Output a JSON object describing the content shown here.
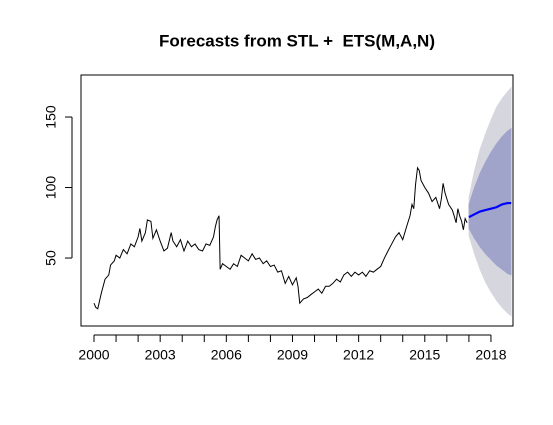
{
  "chart_data": {
    "type": "forecast-line",
    "title": "Forecasts from STL +  ETS(M,A,N)",
    "xlim": [
      1999.41,
      2019.0
    ],
    "ylim": [
      1.8,
      179.8
    ],
    "xticks": [
      2000,
      2003,
      2006,
      2009,
      2012,
      2015,
      2018
    ],
    "xminor_ticks": [
      2001,
      2002,
      2004,
      2005,
      2007,
      2008,
      2010,
      2011,
      2013,
      2014,
      2016,
      2017
    ],
    "yticks": [
      50,
      100,
      150
    ],
    "color": "#000000",
    "x": [
      2000.0,
      2000.08,
      2000.17,
      2000.33,
      2000.5,
      2000.67,
      2000.75,
      2000.92,
      2001.0,
      2001.17,
      2001.33,
      2001.5,
      2001.67,
      2001.83,
      2002.0,
      2002.08,
      2002.17,
      2002.33,
      2002.42,
      2002.58,
      2002.67,
      2002.83,
      2003.0,
      2003.17,
      2003.33,
      2003.5,
      2003.58,
      2003.75,
      2003.92,
      2004.08,
      2004.25,
      2004.42,
      2004.58,
      2004.75,
      2004.92,
      2005.08,
      2005.25,
      2005.42,
      2005.5,
      2005.58,
      2005.67,
      2005.72,
      2005.83,
      2006.0,
      2006.17,
      2006.33,
      2006.5,
      2006.67,
      2006.83,
      2007.0,
      2007.17,
      2007.33,
      2007.5,
      2007.67,
      2007.83,
      2008.0,
      2008.17,
      2008.33,
      2008.5,
      2008.67,
      2008.83,
      2009.0,
      2009.17,
      2009.25,
      2009.33,
      2009.5,
      2009.67,
      2009.83,
      2010.0,
      2010.17,
      2010.33,
      2010.5,
      2010.67,
      2010.83,
      2011.0,
      2011.17,
      2011.33,
      2011.5,
      2011.67,
      2011.83,
      2012.0,
      2012.17,
      2012.33,
      2012.5,
      2012.67,
      2012.83,
      2013.0,
      2013.17,
      2013.33,
      2013.5,
      2013.67,
      2013.83,
      2014.0,
      2014.17,
      2014.33,
      2014.42,
      2014.5,
      2014.58,
      2014.67,
      2014.75,
      2014.83,
      2015.0,
      2015.17,
      2015.33,
      2015.5,
      2015.67,
      2015.75,
      2015.83,
      2015.92,
      2016.08,
      2016.25,
      2016.33,
      2016.42,
      2016.5,
      2016.58,
      2016.67,
      2016.75,
      2016.83,
      2016.92
    ],
    "values": [
      18,
      15,
      14,
      25,
      35,
      38,
      45,
      48,
      52,
      50,
      56,
      53,
      60,
      58,
      65,
      71,
      62,
      68,
      77,
      76,
      64,
      70,
      62,
      55,
      57,
      68,
      62,
      58,
      63,
      55,
      62,
      58,
      60,
      56,
      55,
      60,
      59,
      65,
      72,
      77,
      80,
      42,
      46,
      44,
      42,
      46,
      44,
      52,
      50,
      48,
      53,
      49,
      50,
      46,
      48,
      44,
      45,
      40,
      41,
      32,
      37,
      31,
      36,
      30,
      18,
      21,
      22,
      24,
      26,
      28,
      25,
      30,
      30,
      32,
      35,
      33,
      38,
      40,
      37,
      40,
      38,
      40,
      37,
      41,
      40,
      42,
      44,
      50,
      55,
      60,
      65,
      68,
      63,
      72,
      80,
      88,
      85,
      102,
      114,
      112,
      105,
      100,
      96,
      90,
      93,
      85,
      92,
      103,
      96,
      88,
      84,
      80,
      75,
      85,
      80,
      76,
      70,
      78,
      75
    ],
    "forecast": {
      "x": [
        2017.0,
        2017.25,
        2017.5,
        2017.75,
        2018.0,
        2018.25,
        2018.5,
        2018.75,
        2018.92
      ],
      "mean": [
        79,
        81,
        83,
        84,
        85,
        86,
        88,
        89,
        89
      ],
      "mean_color": "#0000ff",
      "lo80": [
        71,
        64,
        58,
        53,
        49,
        45,
        42,
        39,
        38
      ],
      "hi80": [
        88,
        100,
        110,
        118,
        125,
        131,
        136,
        140,
        142
      ],
      "color80": "#a1a4ca",
      "lo95": [
        66,
        53,
        42,
        33,
        26,
        20,
        15,
        11,
        9
      ],
      "hi95": [
        93,
        112,
        127,
        138,
        148,
        157,
        163,
        168,
        171
      ],
      "color95": "#d6d6de"
    }
  }
}
